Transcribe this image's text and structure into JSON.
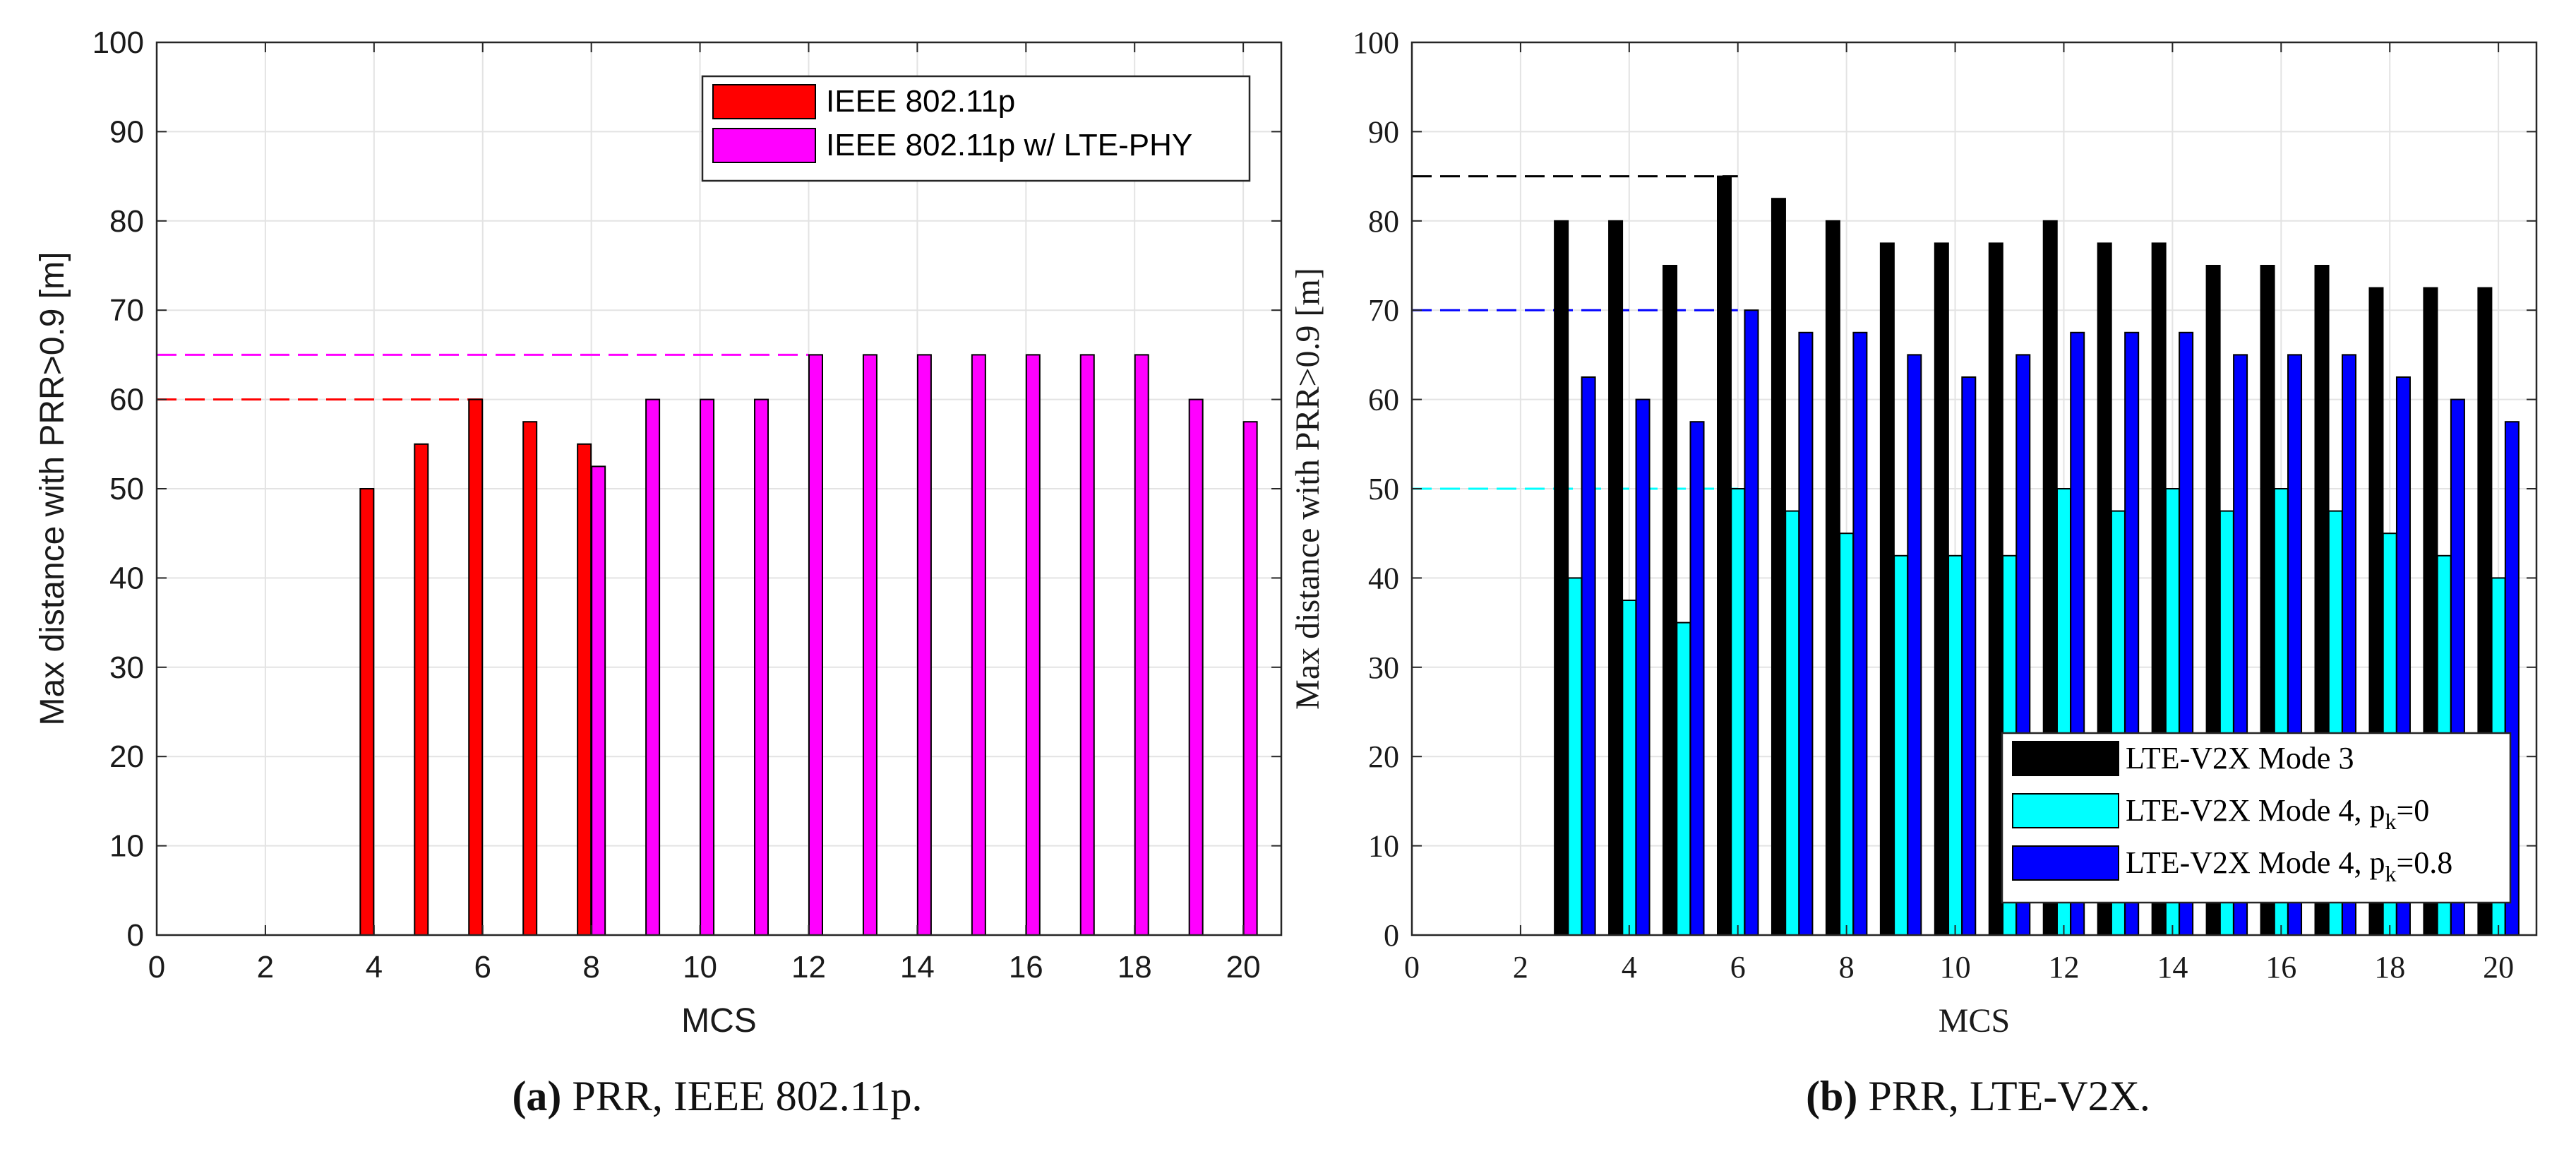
{
  "chart_data": [
    {
      "type": "bar",
      "id": "a",
      "caption_label": "(a)",
      "caption_text": " PRR, IEEE 802.11p.",
      "xlabel": "MCS",
      "ylabel": "Max distance with PRR>0.9 [m]",
      "xlim": [
        0,
        20.7
      ],
      "ylim": [
        0,
        100
      ],
      "xticks": [
        0,
        2,
        4,
        6,
        8,
        10,
        12,
        14,
        16,
        18,
        20
      ],
      "yticks": [
        0,
        10,
        20,
        30,
        40,
        50,
        60,
        70,
        80,
        90,
        100
      ],
      "grid": true,
      "legend_position": "top-right",
      "series": [
        {
          "name": "IEEE 802.11p",
          "color": "#ff0000",
          "x": [
            3.87,
            4.87,
            5.87,
            6.87,
            7.87
          ],
          "values": [
            50,
            55,
            60,
            57.5,
            55
          ]
        },
        {
          "name": "IEEE 802.11p w/ LTE-PHY",
          "color": "#ff00ff",
          "x": [
            8.13,
            9.13,
            10.13,
            11.13,
            12.13,
            13.13,
            14.13,
            15.13,
            16.13,
            17.13,
            18.13,
            19.13,
            20.13
          ],
          "values": [
            52.5,
            60,
            60,
            60,
            65,
            65,
            65,
            65,
            65,
            65,
            65,
            60,
            57.5
          ]
        }
      ],
      "reference_lines": [
        {
          "y": 60,
          "x_start": 0,
          "x_end": 6,
          "color": "#ff0000"
        },
        {
          "y": 65,
          "x_start": 0,
          "x_end": 12,
          "color": "#ff00ff"
        }
      ]
    },
    {
      "type": "bar",
      "id": "b",
      "caption_label": "(b)",
      "caption_text": " PRR, LTE-V2X.",
      "xlabel": "MCS",
      "ylabel": "Max distance with PRR>0.9 [m]",
      "xlim": [
        0,
        20.7
      ],
      "ylim": [
        0,
        100
      ],
      "xticks": [
        0,
        2,
        4,
        6,
        8,
        10,
        12,
        14,
        16,
        18,
        20
      ],
      "yticks": [
        0,
        10,
        20,
        30,
        40,
        50,
        60,
        70,
        80,
        90,
        100
      ],
      "grid": true,
      "legend_position": "bottom-right",
      "categories": [
        3,
        4,
        5,
        6,
        7,
        8,
        9,
        10,
        11,
        12,
        13,
        14,
        15,
        16,
        17,
        18,
        19,
        20
      ],
      "series": [
        {
          "name": "LTE-V2X Mode 3",
          "legend_main": "LTE-V2X Mode 3",
          "legend_sub": "",
          "legend_tail": "",
          "color": "#000000",
          "values": [
            80,
            80,
            75,
            85,
            82.5,
            80,
            77.5,
            77.5,
            77.5,
            80,
            77.5,
            77.5,
            75,
            75,
            75,
            72.5,
            72.5,
            72.5
          ]
        },
        {
          "name": "LTE-V2X Mode 4, pk=0",
          "legend_main": "LTE-V2X Mode 4, p",
          "legend_sub": "k",
          "legend_tail": "=0",
          "color": "#00ffff",
          "values": [
            40,
            37.5,
            35,
            50,
            47.5,
            45,
            42.5,
            42.5,
            42.5,
            50,
            47.5,
            50,
            47.5,
            50,
            47.5,
            45,
            42.5,
            40
          ]
        },
        {
          "name": "LTE-V2X Mode 4, pk=0.8",
          "legend_main": "LTE-V2X Mode 4, p",
          "legend_sub": "k",
          "legend_tail": "=0.8",
          "color": "#0000ff",
          "values": [
            62.5,
            60,
            57.5,
            70,
            67.5,
            67.5,
            65,
            62.5,
            65,
            67.5,
            67.5,
            67.5,
            65,
            65,
            65,
            62.5,
            60,
            57.5
          ]
        }
      ],
      "reference_lines": [
        {
          "y": 85,
          "x_start": 0,
          "x_end": 6,
          "color": "#000000"
        },
        {
          "y": 70,
          "x_start": 0,
          "x_end": 6,
          "color": "#0000ff"
        },
        {
          "y": 50,
          "x_start": 0,
          "x_end": 6,
          "color": "#00ffff"
        }
      ]
    }
  ]
}
